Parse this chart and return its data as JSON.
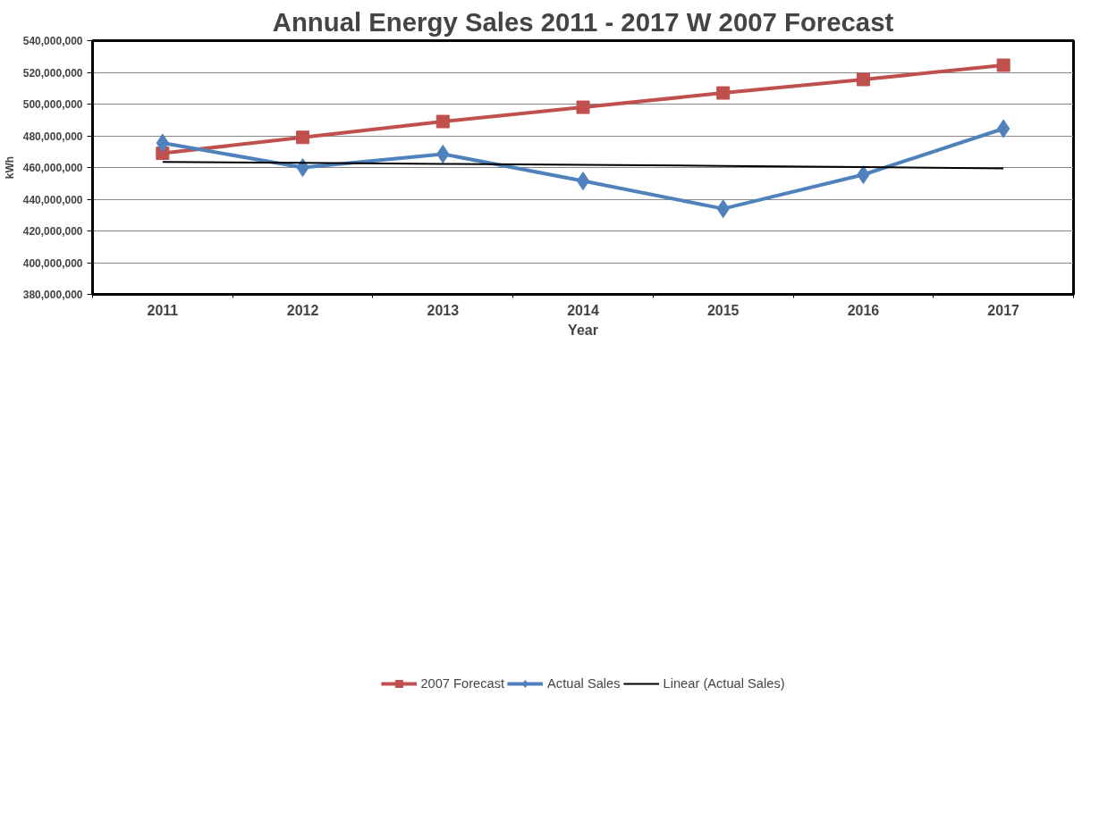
{
  "chart_data": {
    "type": "line",
    "title": "Annual Energy Sales 2011 - 2017 W 2007 Forecast",
    "xlabel": "Year",
    "ylabel": "kWh",
    "categories": [
      "2011",
      "2012",
      "2013",
      "2014",
      "2015",
      "2016",
      "2017"
    ],
    "series": [
      {
        "name": "2007 Forecast",
        "color": "#c0504d",
        "marker": "square",
        "values": [
          469000000,
          479000000,
          489000000,
          498000000,
          507000000,
          515500000,
          524500000
        ]
      },
      {
        "name": "Actual Sales",
        "color": "#4f81bd",
        "marker": "diamond",
        "values": [
          475500000,
          460000000,
          468500000,
          451500000,
          434000000,
          455500000,
          484500000
        ]
      },
      {
        "name": "Linear (Actual Sales)",
        "color": "#000000",
        "marker": "none",
        "values": [
          463500000,
          463000000,
          462300000,
          461700000,
          461000000,
          460300000,
          459500000
        ]
      }
    ],
    "ylim": [
      380000000,
      540000000
    ],
    "yticks": [
      {
        "value": 380000000,
        "label": "380,000,000"
      },
      {
        "value": 400000000,
        "label": "400,000,000"
      },
      {
        "value": 420000000,
        "label": "420,000,000"
      },
      {
        "value": 440000000,
        "label": "440,000,000"
      },
      {
        "value": 460000000,
        "label": "460,000,000"
      },
      {
        "value": 480000000,
        "label": "480,000,000"
      },
      {
        "value": 500000000,
        "label": "500,000,000"
      },
      {
        "value": 520000000,
        "label": "520,000,000"
      },
      {
        "value": 540000000,
        "label": "540,000,000"
      }
    ],
    "grid": "y",
    "legend": "bottom"
  }
}
